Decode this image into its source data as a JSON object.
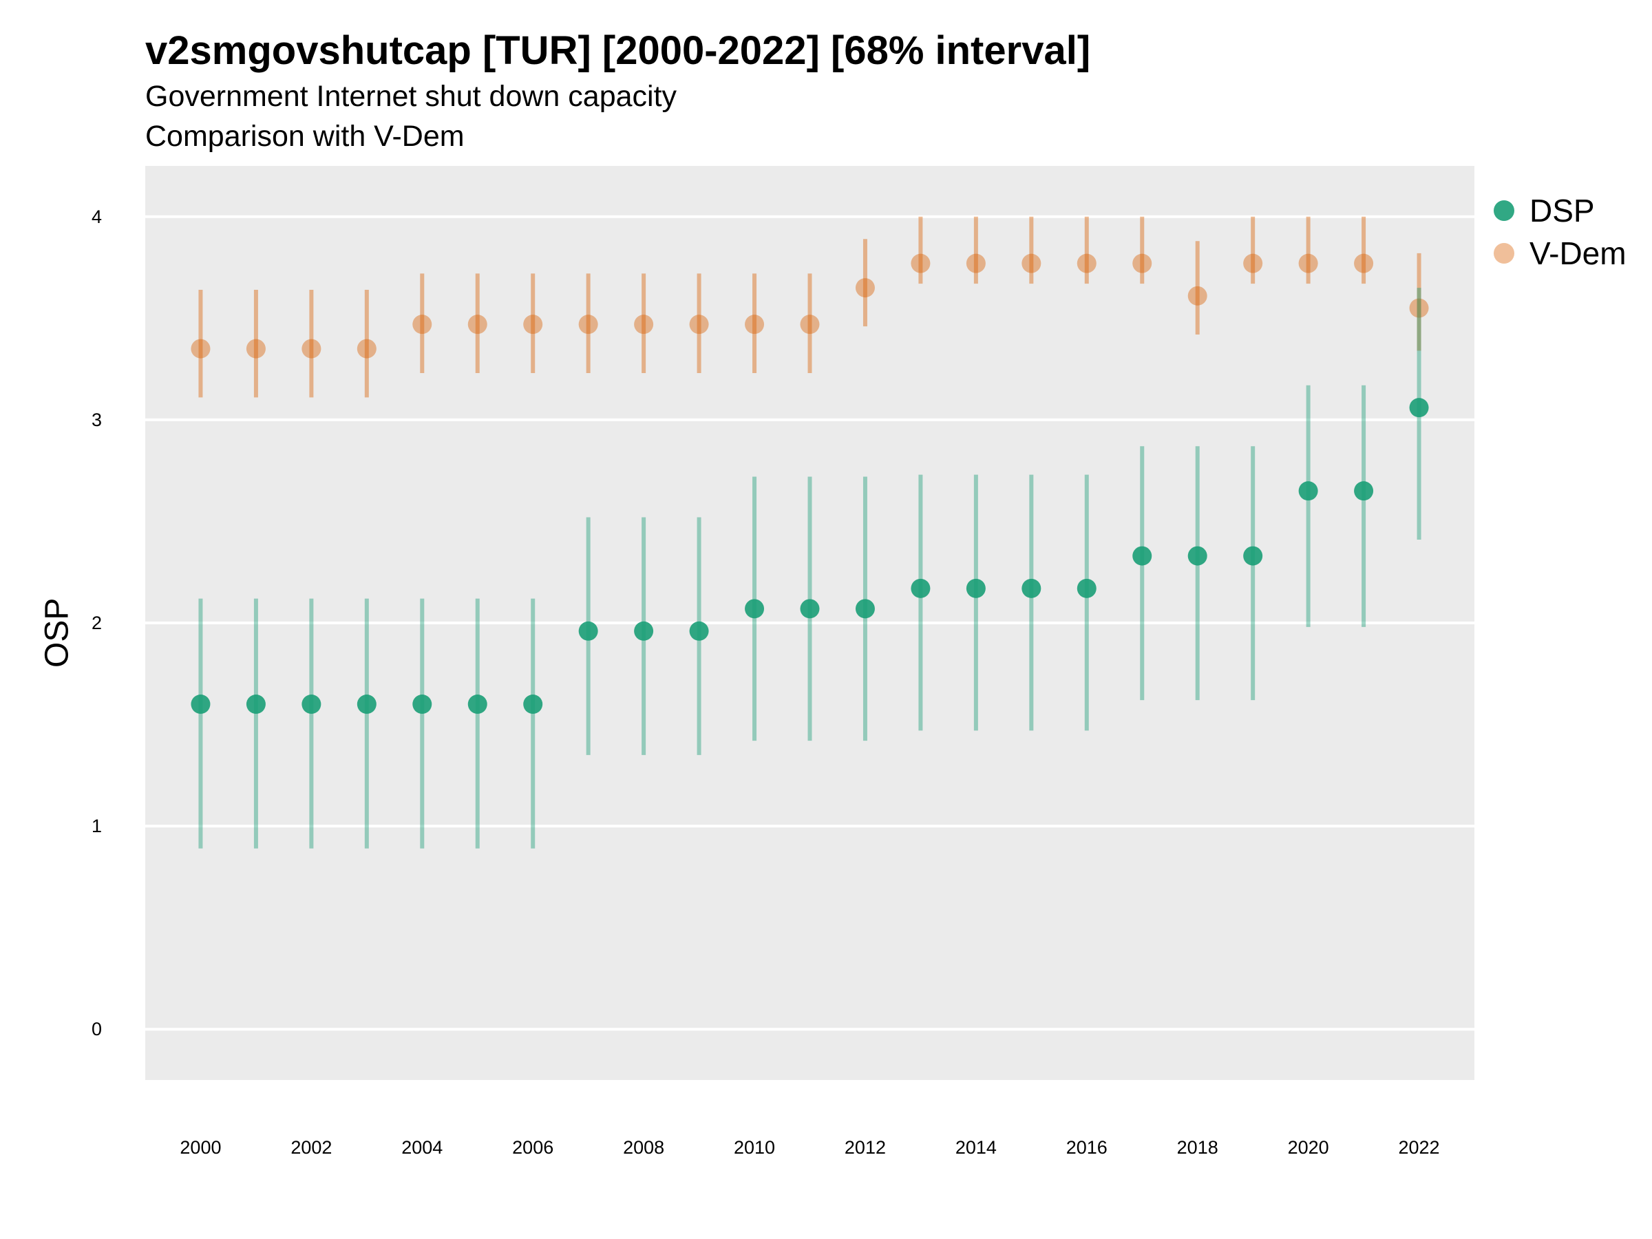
{
  "chart_data": {
    "type": "scatter",
    "title": "v2smgovshutcap [TUR] [2000-2022] [68% interval]",
    "subtitle": [
      "Government Internet shut down capacity",
      "Comparison with V-Dem"
    ],
    "xlabel": "",
    "ylabel": "OSP",
    "xlim": [
      1999,
      2023
    ],
    "ylim": [
      -0.25,
      4.25
    ],
    "x_ticks": [
      2000,
      2002,
      2004,
      2006,
      2008,
      2010,
      2012,
      2014,
      2016,
      2018,
      2020,
      2022
    ],
    "y_ticks": [
      0,
      1,
      2,
      3,
      4
    ],
    "grid": true,
    "legend_position": "right",
    "x": [
      2000,
      2001,
      2002,
      2003,
      2004,
      2005,
      2006,
      2007,
      2008,
      2009,
      2010,
      2011,
      2012,
      2013,
      2014,
      2015,
      2016,
      2017,
      2018,
      2019,
      2020,
      2021,
      2022
    ],
    "series": [
      {
        "name": "DSP",
        "color": "#1b9e77",
        "values": [
          1.6,
          1.6,
          1.6,
          1.6,
          1.6,
          1.6,
          1.6,
          1.96,
          1.96,
          1.96,
          2.07,
          2.07,
          2.07,
          2.17,
          2.17,
          2.17,
          2.17,
          2.33,
          2.33,
          2.33,
          2.65,
          2.65,
          3.06
        ],
        "lower": [
          0.89,
          0.89,
          0.89,
          0.89,
          0.89,
          0.89,
          0.89,
          1.35,
          1.35,
          1.35,
          1.42,
          1.42,
          1.42,
          1.47,
          1.47,
          1.47,
          1.47,
          1.62,
          1.62,
          1.62,
          1.98,
          1.98,
          2.41
        ],
        "upper": [
          2.12,
          2.12,
          2.12,
          2.12,
          2.12,
          2.12,
          2.12,
          2.52,
          2.52,
          2.52,
          2.72,
          2.72,
          2.72,
          2.73,
          2.73,
          2.73,
          2.73,
          2.87,
          2.87,
          2.87,
          3.17,
          3.17,
          3.65
        ]
      },
      {
        "name": "V-Dem",
        "color": "#d95f02",
        "values": [
          3.35,
          3.35,
          3.35,
          3.35,
          3.47,
          3.47,
          3.47,
          3.47,
          3.47,
          3.47,
          3.47,
          3.47,
          3.65,
          3.77,
          3.77,
          3.77,
          3.77,
          3.77,
          3.61,
          3.77,
          3.77,
          3.77,
          3.55
        ],
        "lower": [
          3.11,
          3.11,
          3.11,
          3.11,
          3.23,
          3.23,
          3.23,
          3.23,
          3.23,
          3.23,
          3.23,
          3.23,
          3.46,
          3.67,
          3.67,
          3.67,
          3.67,
          3.67,
          3.42,
          3.67,
          3.67,
          3.67,
          3.34
        ],
        "upper": [
          3.64,
          3.64,
          3.64,
          3.64,
          3.72,
          3.72,
          3.72,
          3.72,
          3.72,
          3.72,
          3.72,
          3.72,
          3.89,
          4.0,
          4.0,
          4.0,
          4.0,
          4.0,
          3.88,
          4.0,
          4.0,
          4.0,
          3.82
        ]
      }
    ]
  }
}
